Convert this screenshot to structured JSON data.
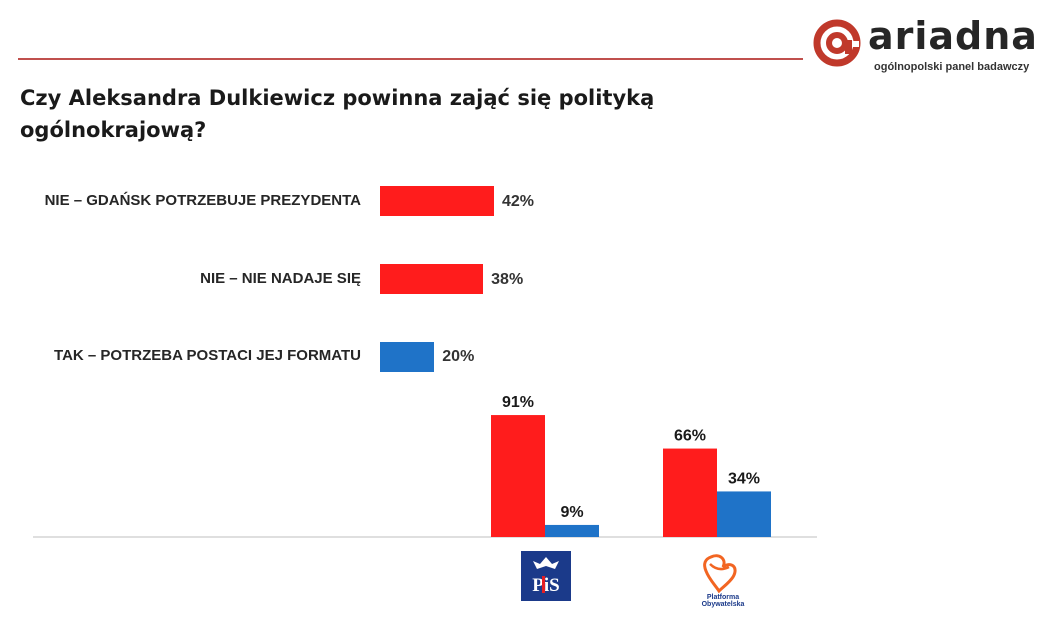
{
  "brand": {
    "name": "ariadna",
    "tagline": "ogólnopolski panel badawczy",
    "accent": "#c0392b"
  },
  "title": "Czy Aleksandra Dulkiewicz powinna zająć się polityką ogólnokrajową?",
  "colors": {
    "red": "#ff1c1c",
    "blue": "#1f73c8"
  },
  "chart_data": [
    {
      "type": "bar",
      "orientation": "horizontal",
      "categories": [
        "NIE – GDAŃSK POTRZEBUJE PREZYDENTA",
        "NIE – NIE NADAJE SIĘ",
        "TAK – POTRZEBA POSTACI JEJ FORMATU"
      ],
      "values": [
        42,
        38,
        20
      ],
      "labels": [
        "42%",
        "38%",
        "20%"
      ],
      "bar_colors": [
        "#ff1c1c",
        "#ff1c1c",
        "#1f73c8"
      ],
      "unit": "%"
    },
    {
      "type": "bar",
      "orientation": "vertical",
      "categories": [
        "PiS",
        "Platforma Obywatelska"
      ],
      "series": [
        {
          "color": "#ff1c1c",
          "values": [
            91,
            66
          ],
          "labels": [
            "91%",
            "66%"
          ]
        },
        {
          "color": "#1f73c8",
          "values": [
            9,
            34
          ],
          "labels": [
            "9%",
            "34%"
          ]
        }
      ],
      "ylim": [
        0,
        100
      ],
      "unit": "%"
    }
  ],
  "party_logos": {
    "pis": {
      "text": "PiS",
      "icon": "pis-eagle-logo"
    },
    "po": {
      "text_line1": "Platforma",
      "text_line2": "Obywatelska",
      "icon": "po-heart-logo"
    }
  }
}
